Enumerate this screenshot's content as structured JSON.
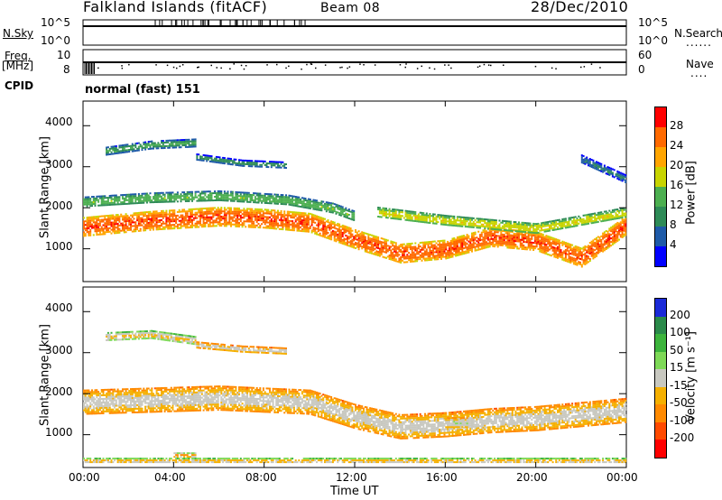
{
  "header": {
    "station": "Falkland Islands (fitACF)",
    "beam": "Beam 08",
    "date": "28/Dec/2010"
  },
  "strip_panels": {
    "nsky_label": "N.Sky",
    "nsearch_label": "N.Search",
    "nsearch_legend": "......",
    "nsky_ticks": [
      "10^5",
      "10^0"
    ],
    "freq_label_1": "Freq.",
    "freq_label_2": "[MHz]",
    "freq_ticks": [
      "10",
      "8"
    ],
    "nave_label": "Nave",
    "nave_legend": "....",
    "nave_ticks": [
      "60",
      "0"
    ],
    "cpid_label": "CPID",
    "cpid_value": "normal (fast) 151"
  },
  "power_panel": {
    "ylabel": "Slant Range [km]",
    "yticks": [
      "4000",
      "3000",
      "2000",
      "1000"
    ],
    "colorbar_label": "Power [dB]",
    "colorbar_ticks": [
      "28",
      "24",
      "20",
      "16",
      "12",
      "8",
      "4"
    ],
    "colorbar_colors": [
      "#ff0000",
      "#ff6a00",
      "#ffa500",
      "#c8d400",
      "#4caf50",
      "#2e8b57",
      "#1e5aa8",
      "#0000ff"
    ]
  },
  "velocity_panel": {
    "ylabel": "Slant Range [km]",
    "yticks": [
      "4000",
      "3000",
      "2000",
      "1000"
    ],
    "colorbar_label": "Velocity [m s⁻¹]",
    "colorbar_ticks": [
      "200",
      "100",
      "50",
      "15",
      "-15",
      "-50",
      "-100",
      "-200"
    ],
    "colorbar_colors": [
      "#1a2ad8",
      "#2a8a4a",
      "#3cb43c",
      "#7ed957",
      "#c8c8c0",
      "#f5b000",
      "#ff8a00",
      "#ff4a00",
      "#ff0000"
    ]
  },
  "xaxis": {
    "label": "Time UT",
    "ticks": [
      "00:00",
      "04:00",
      "08:00",
      "12:00",
      "16:00",
      "20:00",
      "00:00"
    ]
  },
  "chart_data": [
    {
      "type": "heatmap",
      "title": "Power",
      "xlabel": "Time UT",
      "ylabel": "Slant Range [km]",
      "xlim": [
        0,
        24
      ],
      "ylim": [
        200,
        4600
      ],
      "zlabel": "Power [dB]",
      "zlim": [
        0,
        30
      ],
      "bands": [
        {
          "x": [
            0,
            3,
            6,
            8,
            10,
            12,
            14,
            16,
            18,
            20,
            22,
            24
          ],
          "y": [
            1550,
            1700,
            1800,
            1750,
            1650,
            1250,
            900,
            1000,
            1300,
            1200,
            800,
            1600
          ],
          "thickness": 450,
          "value": 26
        },
        {
          "x": [
            0,
            3,
            6,
            9,
            11,
            12
          ],
          "y": [
            2150,
            2250,
            2300,
            2200,
            2000,
            1800
          ],
          "thickness": 250,
          "value": 14
        },
        {
          "x": [
            1,
            3,
            5
          ],
          "y": [
            3400,
            3550,
            3600
          ],
          "thickness": 180,
          "value": 12
        },
        {
          "x": [
            5,
            7,
            9
          ],
          "y": [
            3250,
            3100,
            3050
          ],
          "thickness": 150,
          "value": 10
        },
        {
          "x": [
            13,
            16,
            20,
            22,
            24
          ],
          "y": [
            1900,
            1700,
            1500,
            1700,
            1900
          ],
          "thickness": 250,
          "value": 18
        },
        {
          "x": [
            22,
            24
          ],
          "y": [
            3200,
            2700
          ],
          "thickness": 200,
          "value": 8
        }
      ]
    },
    {
      "type": "heatmap",
      "title": "Velocity",
      "xlabel": "Time UT",
      "ylabel": "Slant Range [km]",
      "xlim": [
        0,
        24
      ],
      "ylim": [
        200,
        4600
      ],
      "zlabel": "Velocity [m s⁻¹]",
      "zlim": [
        -200,
        200
      ],
      "bands": [
        {
          "x": [
            0,
            3,
            6,
            8,
            10,
            12,
            14,
            16,
            18,
            20,
            22,
            24
          ],
          "y": [
            1800,
            1850,
            1900,
            1850,
            1800,
            1450,
            1200,
            1250,
            1350,
            1400,
            1500,
            1600
          ],
          "thickness": 600,
          "value": 0
        },
        {
          "x": [
            1,
            3,
            5
          ],
          "y": [
            3400,
            3450,
            3300
          ],
          "thickness": 200,
          "value": -30
        },
        {
          "x": [
            5,
            7,
            9
          ],
          "y": [
            3200,
            3100,
            3050
          ],
          "thickness": 150,
          "value": 0
        },
        {
          "x": [
            16,
            17
          ],
          "y": [
            1300,
            1300
          ],
          "thickness": 250,
          "value": 20
        },
        {
          "x": [
            4,
            5
          ],
          "y": [
            520,
            520
          ],
          "thickness": 100,
          "value": -80
        },
        {
          "x": [
            0,
            12,
            24
          ],
          "y": [
            380,
            380,
            380
          ],
          "thickness": 120,
          "value": -40
        }
      ]
    }
  ]
}
